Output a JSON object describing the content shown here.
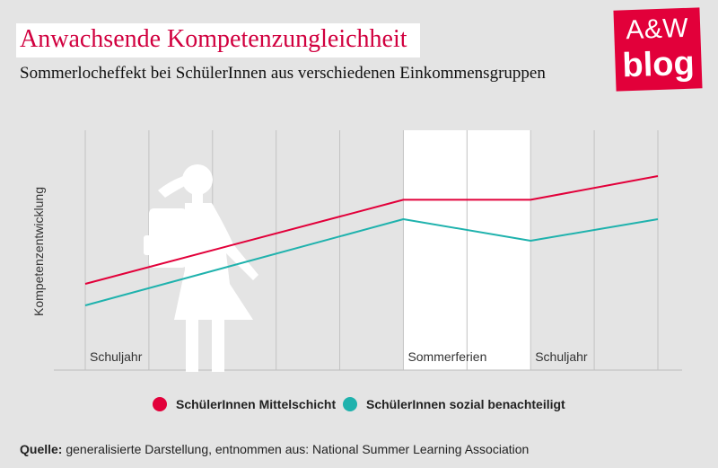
{
  "header": {
    "title": "Anwachsende Kompetenzungleichheit",
    "subtitle": "Sommerlocheffekt bei SchülerInnen aus verschiedenen Einkommensgruppen"
  },
  "logo": {
    "line1": "A&W",
    "line2": "blog"
  },
  "chart_data": {
    "type": "line",
    "ylabel": "Kompetenzentwicklung",
    "x": [
      0,
      1,
      2,
      3,
      4,
      5,
      6,
      7,
      8,
      9
    ],
    "xlim": [
      0,
      9
    ],
    "ylim": [
      0,
      100
    ],
    "grid": true,
    "highlight_band": {
      "from": 5,
      "to": 7,
      "color": "#ffffff"
    },
    "regions": [
      {
        "label": "Schuljahr",
        "start": 0
      },
      {
        "label": "Sommerferien",
        "start": 5
      },
      {
        "label": "Schuljahr",
        "start": 7
      }
    ],
    "series": [
      {
        "name": "SchülerInnen Mittelschicht",
        "color": "#e2003a",
        "x": [
          0,
          5,
          7,
          9
        ],
        "values": [
          40,
          79,
          79,
          90
        ]
      },
      {
        "name": "SchülerInnen sozial benachteiligt",
        "color": "#1fb2ad",
        "x": [
          0,
          5,
          7,
          9
        ],
        "values": [
          30,
          70,
          60,
          70
        ]
      }
    ],
    "legend_position": "bottom"
  },
  "source": {
    "label": "Quelle:",
    "text": " generalisierte Darstellung, entnommen aus: National Summer Learning Association"
  }
}
